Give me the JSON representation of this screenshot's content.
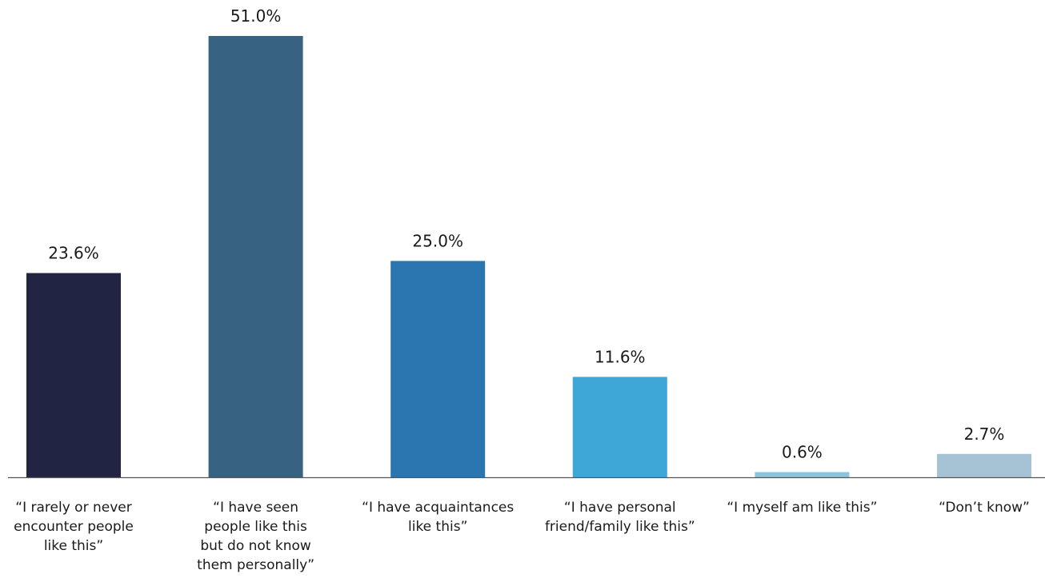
{
  "chart_data": {
    "type": "bar",
    "categories": [
      "“I rarely or never encounter people like this”",
      "“I have seen people like this but do not know them personally”",
      "“I have acquaintances like this”",
      "“I have personal friend/family like this”",
      "“I myself am like this”",
      "“Don’t know”"
    ],
    "category_lines": [
      [
        "“I rarely or never",
        "encounter people",
        "like this”"
      ],
      [
        "“I have seen",
        "people like this",
        "but do not know",
        "them personally”"
      ],
      [
        "“I have acquaintances",
        "like this”"
      ],
      [
        "“I have personal",
        "friend/family like this”"
      ],
      [
        "“I myself am like this”"
      ],
      [
        "“Don’t know”"
      ]
    ],
    "values": [
      23.6,
      51.0,
      25.0,
      11.6,
      0.6,
      2.7
    ],
    "value_labels": [
      "23.6%",
      "51.0%",
      "25.0%",
      "11.6%",
      "0.6%",
      "2.7%"
    ],
    "colors": [
      "#222443",
      "#386282",
      "#2b76b0",
      "#3ea7d8",
      "#8cc4dc",
      "#a5c3d4"
    ],
    "axis_color": "#555555",
    "ylim": [
      0,
      51.0
    ],
    "grid": false,
    "title": "",
    "xlabel": "",
    "ylabel": ""
  }
}
